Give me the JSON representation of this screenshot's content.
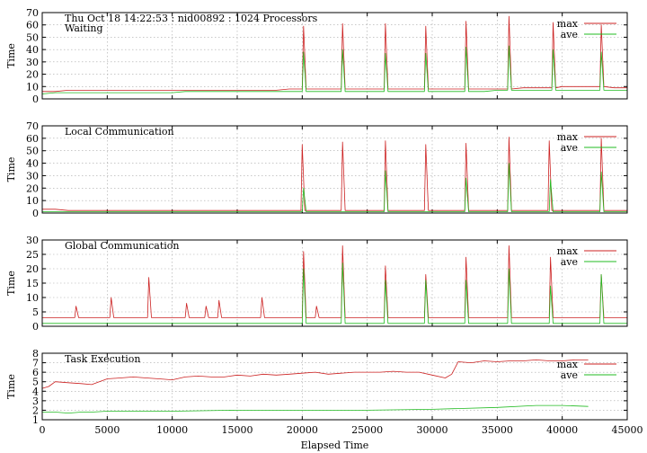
{
  "chart_data": [
    {
      "type": "line",
      "title": "Thu Oct 18 14:22:53 : nid00892 : 1024 Processors",
      "subtitle": "Waiting",
      "xlabel": "",
      "ylabel": "Time",
      "xlim": [
        0,
        45000
      ],
      "ylim": [
        0,
        70
      ],
      "yticks": [
        "0",
        "10",
        "20",
        "30",
        "40",
        "50",
        "60",
        "70"
      ],
      "grid": true,
      "legend_placement": "top-right",
      "series": [
        {
          "name": "max",
          "color": "#cc2222",
          "x": [
            0,
            1000,
            2000,
            3000,
            4000,
            5000,
            6000,
            7000,
            8000,
            9000,
            10000,
            11000,
            12000,
            13000,
            14000,
            15000,
            16000,
            17000,
            18000,
            19000,
            20000,
            20100,
            20300,
            21000,
            22000,
            23000,
            23100,
            23300,
            24000,
            25000,
            26000,
            26300,
            26400,
            26600,
            27000,
            28000,
            29000,
            29400,
            29500,
            29700,
            30000,
            31000,
            32000,
            32500,
            32600,
            32800,
            33000,
            34000,
            35000,
            35800,
            35900,
            36100,
            37000,
            38000,
            39000,
            39200,
            39300,
            39500,
            40000,
            41000,
            42000,
            42900,
            43000,
            43200,
            44000,
            45000
          ],
          "y": [
            6,
            6,
            7,
            7,
            7,
            7,
            7,
            7,
            7,
            7,
            7,
            7,
            7,
            7,
            7,
            7,
            7,
            7,
            7,
            8,
            8,
            59,
            8,
            8,
            8,
            8,
            61,
            8,
            8,
            8,
            8,
            8,
            61,
            8,
            8,
            8,
            8,
            8,
            59,
            8,
            8,
            8,
            8,
            8,
            63,
            8,
            8,
            8,
            8,
            8,
            67,
            8,
            9,
            9,
            9,
            9,
            62,
            9,
            10,
            10,
            10,
            10,
            60,
            10,
            9,
            9
          ]
        },
        {
          "name": "ave",
          "color": "#22bb22",
          "x": [
            0,
            1000,
            2000,
            3000,
            4000,
            5000,
            6000,
            7000,
            8000,
            9000,
            10000,
            11000,
            12000,
            13000,
            14000,
            15000,
            16000,
            17000,
            18000,
            19000,
            20000,
            20100,
            20300,
            21000,
            22000,
            23000,
            23100,
            23300,
            24000,
            25000,
            26000,
            26300,
            26400,
            26600,
            27000,
            28000,
            29000,
            29400,
            29500,
            29700,
            30000,
            31000,
            32000,
            32500,
            32600,
            32800,
            33000,
            34000,
            35000,
            35800,
            35900,
            36100,
            37000,
            38000,
            39000,
            39200,
            39300,
            39500,
            40000,
            41000,
            42000,
            42900,
            43000,
            43200,
            44000,
            45000
          ],
          "y": [
            4,
            5,
            5,
            5,
            5,
            5,
            5,
            5,
            5,
            5,
            5,
            6,
            6,
            6,
            6,
            6,
            6,
            6,
            6,
            6,
            6,
            38,
            6,
            6,
            6,
            6,
            40,
            6,
            6,
            6,
            6,
            6,
            37,
            6,
            6,
            6,
            6,
            6,
            37,
            6,
            6,
            6,
            6,
            6,
            42,
            6,
            6,
            6,
            7,
            7,
            43,
            7,
            7,
            7,
            7,
            7,
            40,
            7,
            7,
            7,
            7,
            7,
            38,
            7,
            7,
            7
          ]
        }
      ]
    },
    {
      "type": "line",
      "title": "Local Communication",
      "xlabel": "",
      "ylabel": "Time",
      "xlim": [
        0,
        45000
      ],
      "ylim": [
        0,
        70
      ],
      "yticks": [
        "0",
        "10",
        "20",
        "30",
        "40",
        "50",
        "60",
        "70"
      ],
      "grid": true,
      "legend_placement": "top-right",
      "series": [
        {
          "name": "max",
          "color": "#cc2222",
          "x": [
            0,
            1000,
            2000,
            3000,
            4000,
            5000,
            10000,
            15000,
            19900,
            20000,
            20200,
            23000,
            23100,
            23300,
            26300,
            26400,
            26600,
            29400,
            29500,
            29700,
            32500,
            32600,
            32800,
            35800,
            35900,
            36100,
            38900,
            39000,
            39200,
            42900,
            43000,
            43200,
            45000
          ],
          "y": [
            3,
            3,
            2,
            2,
            2,
            2,
            2,
            2,
            2,
            55,
            2,
            2,
            57,
            2,
            2,
            58,
            2,
            2,
            55,
            2,
            2,
            56,
            2,
            2,
            61,
            2,
            2,
            58,
            2,
            2,
            60,
            2,
            2
          ]
        },
        {
          "name": "ave",
          "color": "#22bb22",
          "x": [
            0,
            5000,
            10000,
            15000,
            20000,
            20100,
            20300,
            26300,
            26400,
            26600,
            32500,
            32600,
            32800,
            35800,
            35900,
            36100,
            39000,
            39100,
            39300,
            42900,
            43000,
            43200,
            45000
          ],
          "y": [
            1,
            1,
            1,
            1,
            1,
            20,
            1,
            1,
            34,
            1,
            1,
            28,
            1,
            1,
            40,
            1,
            1,
            27,
            1,
            1,
            33,
            1,
            1
          ]
        }
      ]
    },
    {
      "type": "line",
      "title": "Global Communication",
      "xlabel": "",
      "ylabel": "Time",
      "xlim": [
        0,
        45000
      ],
      "ylim": [
        0,
        30
      ],
      "yticks": [
        "0",
        "5",
        "10",
        "15",
        "20",
        "25",
        "30"
      ],
      "grid": true,
      "legend_placement": "top-right",
      "series": [
        {
          "name": "max",
          "color": "#cc2222",
          "x": [
            0,
            1500,
            2500,
            2600,
            2800,
            4000,
            5200,
            5300,
            5500,
            7000,
            8100,
            8200,
            8400,
            9000,
            10000,
            11000,
            11100,
            11300,
            12500,
            12600,
            12800,
            13500,
            13600,
            13800,
            14000,
            16800,
            16900,
            17100,
            18000,
            20000,
            20100,
            20300,
            21000,
            21100,
            21300,
            23000,
            23100,
            23300,
            24000,
            25000,
            26300,
            26400,
            26600,
            29400,
            29500,
            29700,
            32500,
            32600,
            32800,
            35800,
            35900,
            36100,
            39000,
            39100,
            39300,
            42900,
            43000,
            43200,
            45000
          ],
          "y": [
            3,
            3,
            3,
            7,
            3,
            3,
            3,
            10,
            3,
            3,
            3,
            17,
            3,
            3,
            3,
            3,
            8,
            3,
            3,
            7,
            3,
            3,
            9,
            3,
            3,
            3,
            10,
            3,
            3,
            3,
            26,
            3,
            3,
            7,
            3,
            3,
            28,
            3,
            3,
            3,
            3,
            21,
            3,
            3,
            18,
            3,
            3,
            24,
            3,
            3,
            28,
            3,
            3,
            24,
            3,
            3,
            18,
            3,
            3
          ]
        },
        {
          "name": "ave",
          "color": "#22bb22",
          "x": [
            0,
            2000,
            4000,
            6000,
            8000,
            10000,
            12000,
            14000,
            16000,
            18000,
            20000,
            20100,
            20300,
            23000,
            23100,
            23300,
            26300,
            26400,
            26600,
            29400,
            29500,
            29700,
            32500,
            32600,
            32800,
            35800,
            35900,
            36100,
            39000,
            39100,
            39300,
            42900,
            43000,
            43200,
            45000
          ],
          "y": [
            1,
            1,
            1,
            1,
            1,
            1,
            1,
            1,
            1,
            1,
            1,
            20,
            1,
            1,
            22,
            1,
            1,
            16,
            1,
            1,
            16,
            1,
            1,
            16,
            1,
            1,
            20,
            1,
            1,
            14,
            1,
            1,
            18,
            1,
            1
          ]
        }
      ]
    },
    {
      "type": "line",
      "title": "Task Execution",
      "xlabel": "Elapsed Time",
      "ylabel": "Time",
      "xlim": [
        0,
        45000
      ],
      "ylim": [
        1,
        8
      ],
      "yticks": [
        "1",
        "2",
        "3",
        "4",
        "5",
        "6",
        "7",
        "8"
      ],
      "xticks": [
        "0",
        "5000",
        "10000",
        "15000",
        "20000",
        "25000",
        "30000",
        "35000",
        "40000",
        "45000"
      ],
      "grid": true,
      "legend_placement": "top-right",
      "series": [
        {
          "name": "max",
          "color": "#cc2222",
          "x": [
            0,
            500,
            1000,
            2000,
            3000,
            3800,
            5000,
            6000,
            7000,
            8000,
            9000,
            10000,
            11000,
            12000,
            13000,
            14000,
            15000,
            16000,
            17000,
            18000,
            19000,
            20000,
            21000,
            22000,
            23000,
            24000,
            25000,
            26000,
            27000,
            28000,
            29000,
            30000,
            31000,
            31500,
            32000,
            33000,
            34000,
            35000,
            36000,
            37000,
            38000,
            39000,
            40000,
            41000,
            42000
          ],
          "y": [
            4.3,
            4.5,
            5.0,
            4.9,
            4.8,
            4.7,
            5.3,
            5.4,
            5.5,
            5.4,
            5.3,
            5.2,
            5.5,
            5.6,
            5.5,
            5.5,
            5.7,
            5.6,
            5.8,
            5.7,
            5.8,
            5.9,
            6.0,
            5.8,
            5.9,
            6.0,
            6.0,
            6.0,
            6.1,
            6.0,
            6.0,
            5.7,
            5.4,
            5.8,
            7.1,
            7.0,
            7.2,
            7.1,
            7.2,
            7.2,
            7.3,
            7.2,
            7.2,
            7.3,
            7.3
          ]
        },
        {
          "name": "ave",
          "color": "#22bb22",
          "x": [
            0,
            1000,
            2000,
            3000,
            3800,
            5000,
            10000,
            15000,
            20000,
            25000,
            30000,
            35000,
            38000,
            40000,
            42000
          ],
          "y": [
            1.8,
            1.8,
            1.7,
            1.8,
            1.8,
            1.9,
            1.9,
            2.0,
            2.0,
            2.0,
            2.1,
            2.3,
            2.5,
            2.5,
            2.4
          ]
        }
      ]
    }
  ]
}
